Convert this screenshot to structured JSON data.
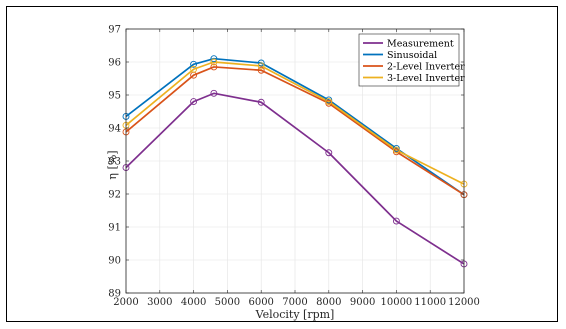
{
  "chart_data": {
    "type": "line",
    "title": "",
    "xlabel": "Velocity [rpm]",
    "ylabel": "η [%]",
    "xlim": [
      2000,
      12000
    ],
    "ylim": [
      89,
      97
    ],
    "xticks": [
      2000,
      3000,
      4000,
      5000,
      6000,
      7000,
      8000,
      9000,
      10000,
      11000,
      12000
    ],
    "yticks": [
      89,
      90,
      91,
      92,
      93,
      94,
      95,
      96,
      97
    ],
    "grid": true,
    "legend_position": "top-right",
    "x": [
      2000,
      4000,
      4600,
      6000,
      8000,
      10000,
      12000
    ],
    "series": [
      {
        "name": "Measurement",
        "color": "#7E2F8E",
        "values": [
          92.8,
          94.8,
          95.05,
          94.78,
          93.25,
          91.18,
          89.88
        ]
      },
      {
        "name": "Sinusoidal",
        "color": "#0072BD",
        "values": [
          94.35,
          95.93,
          96.1,
          95.97,
          94.85,
          93.38,
          91.98
        ]
      },
      {
        "name": "2-Level Inverter",
        "color": "#D95319",
        "values": [
          93.88,
          95.6,
          95.85,
          95.75,
          94.75,
          93.28,
          91.98
        ]
      },
      {
        "name": "3-Level Inverter",
        "color": "#EDB120",
        "values": [
          94.08,
          95.78,
          96.0,
          95.88,
          94.8,
          93.33,
          92.3
        ]
      }
    ]
  }
}
